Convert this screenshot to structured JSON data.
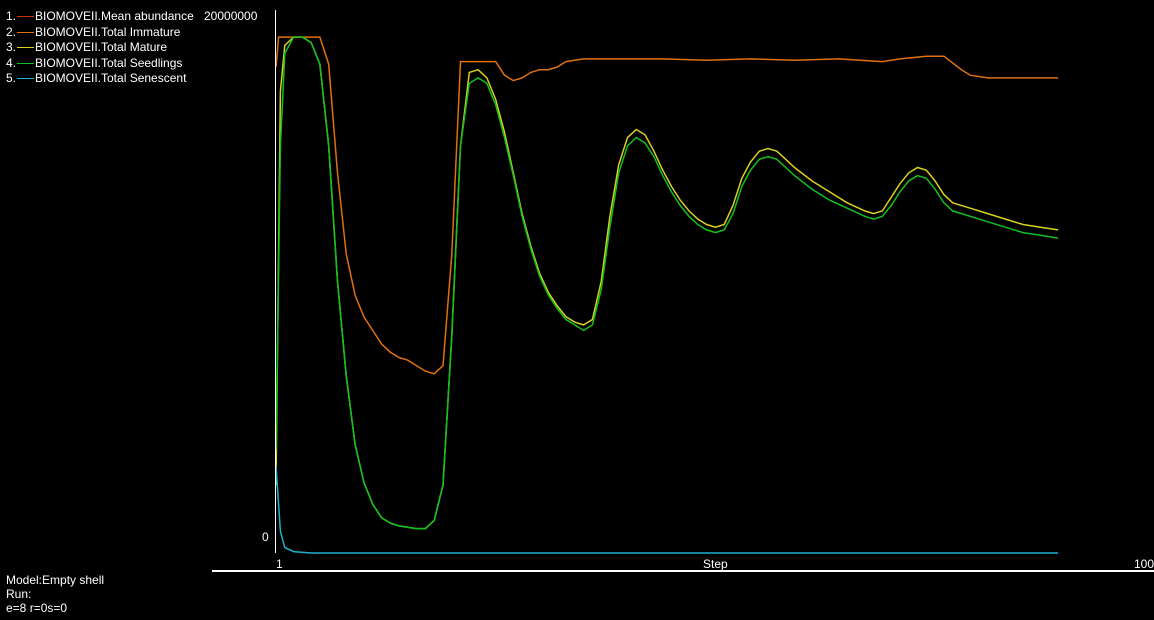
{
  "chart_data": {
    "type": "line",
    "y_max_label": "20000000",
    "y_min_label": "0",
    "xlabel": "Step",
    "x_min_label": "1",
    "x_max_label": "100",
    "ylim": [
      0,
      20000000
    ],
    "xlim": [
      1,
      100
    ],
    "legend": [
      {
        "num": "1.",
        "name": "BIOMOVEII.Mean abundance",
        "color": "#d03010"
      },
      {
        "num": "2.",
        "name": "BIOMOVEII.Total Immature",
        "color": "#e07010"
      },
      {
        "num": "3.",
        "name": "BIOMOVEII.Total Mature",
        "color": "#d8d020"
      },
      {
        "num": "4.",
        "name": "BIOMOVEII.Total Seedlings",
        "color": "#10c020"
      },
      {
        "num": "5.",
        "name": "BIOMOVEII.Total Senescent",
        "color": "#20b0d0"
      }
    ],
    "series": [
      {
        "name": "BIOMOVEII.Total Immature",
        "color": "#e07010",
        "points": [
          [
            1,
            17900000
          ],
          [
            1.3,
            19000000
          ],
          [
            3,
            19000000
          ],
          [
            6,
            19000000
          ],
          [
            7,
            18000000
          ],
          [
            8,
            14000000
          ],
          [
            9,
            11000000
          ],
          [
            10,
            9500000
          ],
          [
            11,
            8700000
          ],
          [
            12,
            8200000
          ],
          [
            13,
            7700000
          ],
          [
            14,
            7400000
          ],
          [
            15,
            7200000
          ],
          [
            16,
            7100000
          ],
          [
            17,
            6900000
          ],
          [
            18,
            6700000
          ],
          [
            19,
            6600000
          ],
          [
            20,
            6900000
          ],
          [
            21,
            11000000
          ],
          [
            22,
            18100000
          ],
          [
            23,
            18100000
          ],
          [
            25,
            18100000
          ],
          [
            26,
            18100000
          ],
          [
            27,
            17600000
          ],
          [
            28,
            17400000
          ],
          [
            29,
            17500000
          ],
          [
            30,
            17700000
          ],
          [
            31,
            17800000
          ],
          [
            32,
            17800000
          ],
          [
            33,
            17900000
          ],
          [
            34,
            18100000
          ],
          [
            36,
            18200000
          ],
          [
            40,
            18200000
          ],
          [
            45,
            18200000
          ],
          [
            50,
            18150000
          ],
          [
            55,
            18200000
          ],
          [
            60,
            18150000
          ],
          [
            65,
            18200000
          ],
          [
            70,
            18100000
          ],
          [
            72,
            18200000
          ],
          [
            75,
            18300000
          ],
          [
            77,
            18300000
          ],
          [
            79,
            17800000
          ],
          [
            80,
            17600000
          ],
          [
            82,
            17500000
          ],
          [
            90,
            17500000
          ]
        ]
      },
      {
        "name": "BIOMOVEII.Total Mature",
        "color": "#d8d020",
        "points": [
          [
            1,
            2500000
          ],
          [
            1.5,
            17000000
          ],
          [
            2,
            18700000
          ],
          [
            3,
            19000000
          ],
          [
            4,
            19000000
          ],
          [
            5,
            18800000
          ],
          [
            6,
            18000000
          ],
          [
            7,
            15000000
          ],
          [
            8,
            10000000
          ],
          [
            9,
            6500000
          ],
          [
            10,
            4000000
          ],
          [
            11,
            2600000
          ],
          [
            12,
            1800000
          ],
          [
            13,
            1300000
          ],
          [
            14,
            1100000
          ],
          [
            15,
            1000000
          ],
          [
            16,
            950000
          ],
          [
            17,
            900000
          ],
          [
            18,
            900000
          ],
          [
            19,
            1200000
          ],
          [
            20,
            2500000
          ],
          [
            21,
            8000000
          ],
          [
            22,
            15000000
          ],
          [
            23,
            17700000
          ],
          [
            24,
            17800000
          ],
          [
            25,
            17500000
          ],
          [
            26,
            16700000
          ],
          [
            27,
            15500000
          ],
          [
            28,
            14000000
          ],
          [
            29,
            12500000
          ],
          [
            30,
            11300000
          ],
          [
            31,
            10300000
          ],
          [
            32,
            9600000
          ],
          [
            33,
            9100000
          ],
          [
            34,
            8700000
          ],
          [
            35,
            8500000
          ],
          [
            36,
            8400000
          ],
          [
            37,
            8600000
          ],
          [
            38,
            10000000
          ],
          [
            39,
            12400000
          ],
          [
            40,
            14300000
          ],
          [
            41,
            15300000
          ],
          [
            42,
            15600000
          ],
          [
            43,
            15400000
          ],
          [
            44,
            14800000
          ],
          [
            45,
            14100000
          ],
          [
            46,
            13500000
          ],
          [
            47,
            13000000
          ],
          [
            48,
            12600000
          ],
          [
            49,
            12300000
          ],
          [
            50,
            12100000
          ],
          [
            51,
            12000000
          ],
          [
            52,
            12100000
          ],
          [
            53,
            12800000
          ],
          [
            54,
            13800000
          ],
          [
            55,
            14400000
          ],
          [
            56,
            14800000
          ],
          [
            57,
            14900000
          ],
          [
            58,
            14800000
          ],
          [
            59,
            14500000
          ],
          [
            60,
            14200000
          ],
          [
            62,
            13700000
          ],
          [
            64,
            13300000
          ],
          [
            66,
            12900000
          ],
          [
            68,
            12600000
          ],
          [
            69,
            12500000
          ],
          [
            70,
            12600000
          ],
          [
            71,
            13100000
          ],
          [
            72,
            13600000
          ],
          [
            73,
            14000000
          ],
          [
            74,
            14200000
          ],
          [
            75,
            14100000
          ],
          [
            76,
            13700000
          ],
          [
            77,
            13200000
          ],
          [
            78,
            12900000
          ],
          [
            80,
            12700000
          ],
          [
            82,
            12500000
          ],
          [
            84,
            12300000
          ],
          [
            86,
            12100000
          ],
          [
            88,
            12000000
          ],
          [
            90,
            11900000
          ]
        ]
      },
      {
        "name": "BIOMOVEII.Total Seedlings",
        "color": "#10c020",
        "points": [
          [
            1,
            3800000
          ],
          [
            1.5,
            15000000
          ],
          [
            2,
            18400000
          ],
          [
            3,
            19000000
          ],
          [
            4,
            19000000
          ],
          [
            5,
            18800000
          ],
          [
            6,
            18000000
          ],
          [
            7,
            15000000
          ],
          [
            8,
            10000000
          ],
          [
            9,
            6500000
          ],
          [
            10,
            4000000
          ],
          [
            11,
            2600000
          ],
          [
            12,
            1800000
          ],
          [
            13,
            1300000
          ],
          [
            14,
            1100000
          ],
          [
            15,
            1000000
          ],
          [
            16,
            950000
          ],
          [
            17,
            900000
          ],
          [
            18,
            900000
          ],
          [
            19,
            1200000
          ],
          [
            20,
            2500000
          ],
          [
            21,
            8000000
          ],
          [
            22,
            15000000
          ],
          [
            23,
            17300000
          ],
          [
            24,
            17500000
          ],
          [
            25,
            17300000
          ],
          [
            26,
            16500000
          ],
          [
            27,
            15300000
          ],
          [
            28,
            13900000
          ],
          [
            29,
            12400000
          ],
          [
            30,
            11200000
          ],
          [
            31,
            10200000
          ],
          [
            32,
            9500000
          ],
          [
            33,
            9000000
          ],
          [
            34,
            8600000
          ],
          [
            35,
            8400000
          ],
          [
            36,
            8200000
          ],
          [
            37,
            8400000
          ],
          [
            38,
            9700000
          ],
          [
            39,
            12000000
          ],
          [
            40,
            14000000
          ],
          [
            41,
            15000000
          ],
          [
            42,
            15300000
          ],
          [
            43,
            15100000
          ],
          [
            44,
            14600000
          ],
          [
            45,
            13900000
          ],
          [
            46,
            13300000
          ],
          [
            47,
            12800000
          ],
          [
            48,
            12400000
          ],
          [
            49,
            12100000
          ],
          [
            50,
            11900000
          ],
          [
            51,
            11800000
          ],
          [
            52,
            11900000
          ],
          [
            53,
            12500000
          ],
          [
            54,
            13500000
          ],
          [
            55,
            14100000
          ],
          [
            56,
            14500000
          ],
          [
            57,
            14600000
          ],
          [
            58,
            14500000
          ],
          [
            59,
            14200000
          ],
          [
            60,
            13900000
          ],
          [
            62,
            13400000
          ],
          [
            64,
            13000000
          ],
          [
            66,
            12700000
          ],
          [
            68,
            12400000
          ],
          [
            69,
            12300000
          ],
          [
            70,
            12400000
          ],
          [
            71,
            12800000
          ],
          [
            72,
            13300000
          ],
          [
            73,
            13700000
          ],
          [
            74,
            13900000
          ],
          [
            75,
            13800000
          ],
          [
            76,
            13400000
          ],
          [
            77,
            12900000
          ],
          [
            78,
            12600000
          ],
          [
            80,
            12400000
          ],
          [
            82,
            12200000
          ],
          [
            84,
            12000000
          ],
          [
            86,
            11800000
          ],
          [
            88,
            11700000
          ],
          [
            90,
            11600000
          ]
        ]
      },
      {
        "name": "BIOMOVEII.Total Senescent",
        "color": "#20b0d0",
        "points": [
          [
            1,
            3200000
          ],
          [
            1.5,
            800000
          ],
          [
            2,
            200000
          ],
          [
            3,
            50000
          ],
          [
            5,
            0
          ],
          [
            90,
            0
          ]
        ]
      }
    ]
  },
  "footer": {
    "model": "Model:Empty shell",
    "run": "Run:",
    "stats": "e=8 r=0s=0"
  }
}
